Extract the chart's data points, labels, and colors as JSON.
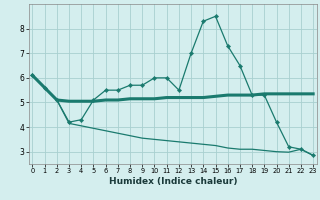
{
  "xlabel": "Humidex (Indice chaleur)",
  "x": [
    0,
    1,
    2,
    3,
    4,
    5,
    6,
    7,
    8,
    9,
    10,
    11,
    12,
    13,
    14,
    15,
    16,
    17,
    18,
    19,
    20,
    21,
    22,
    23
  ],
  "y_zigzag": [
    6.1,
    5.6,
    5.1,
    4.2,
    4.3,
    5.1,
    5.5,
    5.5,
    5.7,
    5.7,
    6.0,
    6.0,
    5.5,
    7.0,
    8.3,
    8.5,
    7.3,
    6.5,
    5.3,
    5.3,
    4.2,
    3.2,
    3.1,
    2.85
  ],
  "y_flat": [
    6.1,
    5.6,
    5.1,
    5.05,
    5.05,
    5.05,
    5.1,
    5.1,
    5.15,
    5.15,
    5.15,
    5.2,
    5.2,
    5.2,
    5.2,
    5.25,
    5.3,
    5.3,
    5.3,
    5.35,
    5.35,
    5.35,
    5.35,
    5.35
  ],
  "y_bottom": [
    6.1,
    5.6,
    5.1,
    4.15,
    4.05,
    3.95,
    3.85,
    3.75,
    3.65,
    3.55,
    3.5,
    3.45,
    3.4,
    3.35,
    3.3,
    3.25,
    3.15,
    3.1,
    3.1,
    3.05,
    3.0,
    2.98,
    3.1,
    2.85
  ],
  "color": "#1a7a6e",
  "bg_color": "#d4eeee",
  "grid_color": "#a8d0d0",
  "ylim": [
    2.5,
    9.0
  ],
  "xlim": [
    -0.3,
    23.3
  ],
  "yticks": [
    3,
    4,
    5,
    6,
    7,
    8
  ],
  "xticks": [
    0,
    1,
    2,
    3,
    4,
    5,
    6,
    7,
    8,
    9,
    10,
    11,
    12,
    13,
    14,
    15,
    16,
    17,
    18,
    19,
    20,
    21,
    22,
    23
  ]
}
